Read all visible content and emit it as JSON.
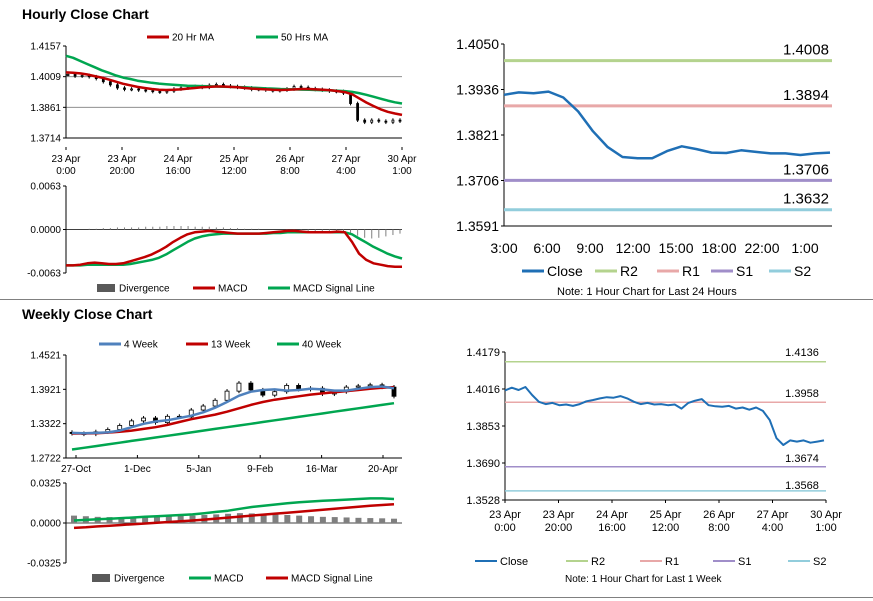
{
  "sections": {
    "hourly_title": "Hourly Close Chart",
    "weekly_title": "Weekly Close Chart"
  },
  "notes": {
    "hourly": "Note: 1 Hour Chart for Last 24 Hours",
    "weekly": "Note: 1 Hour Chart for Last 1 Week"
  },
  "colors": {
    "close": "#1F6FB5",
    "r2": "#B4D38E",
    "r1": "#E8A8A8",
    "s1": "#A08EC9",
    "s2": "#92CDDC",
    "red": "#C00000",
    "green": "#00A650",
    "blue": "#4F81BD",
    "bar": "#595959"
  },
  "chart_data": [
    {
      "id": "hourly_price",
      "type": "candlestick",
      "legend": [
        "20 Hr MA",
        "50 Hrs MA"
      ],
      "yticks": [
        "1.4157",
        "1.4009",
        "1.3861",
        "1.3714"
      ],
      "ylim": [
        1.3714,
        1.4157
      ],
      "xticks": [
        "23 Apr\n0:00",
        "23 Apr\n20:00",
        "24 Apr\n16:00",
        "25 Apr\n12:00",
        "26 Apr\n8:00",
        "27 Apr\n4:00",
        "30 Apr\n1:00"
      ],
      "close": [
        1.402,
        1.4012,
        1.4015,
        1.4009,
        1.4,
        1.3985,
        1.397,
        1.3955,
        1.3948,
        1.395,
        1.3945,
        1.3942,
        1.3938,
        1.3935,
        1.394,
        1.395,
        1.3955,
        1.396,
        1.3962,
        1.3958,
        1.3968,
        1.3972,
        1.3965,
        1.3962,
        1.3958,
        1.3955,
        1.3948,
        1.395,
        1.3945,
        1.3942,
        1.3945,
        1.395,
        1.3962,
        1.3958,
        1.3952,
        1.3948,
        1.3945,
        1.394,
        1.3938,
        1.393,
        1.388,
        1.38,
        1.379,
        1.38,
        1.3795,
        1.379,
        1.38,
        1.3795
      ],
      "ma20": [
        1.403,
        1.4028,
        1.4025,
        1.402,
        1.4012,
        1.4005,
        1.3995,
        1.3985,
        1.3975,
        1.3968,
        1.396,
        1.3955,
        1.395,
        1.3946,
        1.3945,
        1.3946,
        1.3948,
        1.3952,
        1.3955,
        1.3958,
        1.396,
        1.3962,
        1.3962,
        1.396,
        1.3958,
        1.3955,
        1.3952,
        1.395,
        1.3948,
        1.3946,
        1.3945,
        1.3946,
        1.3948,
        1.395,
        1.395,
        1.3948,
        1.3946,
        1.3944,
        1.394,
        1.3935,
        1.3925,
        1.3905,
        1.3885,
        1.3868,
        1.3852,
        1.384,
        1.3832,
        1.3825
      ],
      "ma50": [
        1.411,
        1.41,
        1.4085,
        1.407,
        1.4055,
        1.404,
        1.4028,
        1.4015,
        1.4005,
        1.3998,
        1.399,
        1.3985,
        1.398,
        1.3976,
        1.3973,
        1.397,
        1.3968,
        1.3966,
        1.3965,
        1.3964,
        1.3963,
        1.3962,
        1.3961,
        1.396,
        1.3959,
        1.3958,
        1.3956,
        1.3955,
        1.3953,
        1.3952,
        1.395,
        1.3949,
        1.3948,
        1.3947,
        1.3946,
        1.3945,
        1.3944,
        1.3943,
        1.3942,
        1.394,
        1.3936,
        1.393,
        1.3922,
        1.3913,
        1.3903,
        1.3894,
        1.3886,
        1.388
      ]
    },
    {
      "id": "hourly_macd",
      "type": "line+bar",
      "legend": [
        "Divergence",
        "MACD",
        "MACD Signal Line"
      ],
      "yticks": [
        "0.0063",
        "0.0000",
        "-0.0063"
      ],
      "ylim": [
        -0.0063,
        0.0063
      ],
      "divergence": [
        0,
        0,
        0,
        0.0001,
        0.0001,
        0.0002,
        0.0002,
        0.0003,
        0.0003,
        0.0003,
        0.0003,
        0.0004,
        0.0004,
        0.0004,
        0.0005,
        0.0005,
        0.0005,
        0.0005,
        0.0004,
        0.0004,
        0.0004,
        0.0003,
        0.0003,
        0.0002,
        0.0002,
        0.0001,
        0.0001,
        0.0001,
        0,
        0,
        0,
        -0.0001,
        -0.0001,
        -0.0001,
        -0.0002,
        -0.0002,
        -0.0002,
        -0.0002,
        -0.0002,
        -0.0003,
        -0.0005,
        -0.0009,
        -0.0012,
        -0.0013,
        -0.0012,
        -0.001,
        -0.0008,
        -0.0006
      ],
      "macd": [
        -0.0052,
        -0.0052,
        -0.0051,
        -0.0049,
        -0.0048,
        -0.0049,
        -0.005,
        -0.005,
        -0.0049,
        -0.0046,
        -0.0043,
        -0.004,
        -0.0036,
        -0.0031,
        -0.0025,
        -0.0018,
        -0.0012,
        -0.0007,
        -0.0004,
        -0.0003,
        -0.0002,
        -0.0003,
        -0.0004,
        -0.0005,
        -0.0006,
        -0.0006,
        -0.0006,
        -0.0006,
        -0.0005,
        -0.0004,
        -0.0003,
        -0.0002,
        -0.0002,
        -0.0003,
        -0.0004,
        -0.0004,
        -0.0004,
        -0.0004,
        -0.0003,
        -0.0004,
        -0.0018,
        -0.0035,
        -0.0044,
        -0.0049,
        -0.0051,
        -0.0053,
        -0.0054,
        -0.0054
      ],
      "signal": [
        -0.0052,
        -0.0052,
        -0.0052,
        -0.0051,
        -0.0051,
        -0.0051,
        -0.0051,
        -0.0051,
        -0.0051,
        -0.005,
        -0.0048,
        -0.0046,
        -0.0044,
        -0.0041,
        -0.0036,
        -0.003,
        -0.0024,
        -0.0018,
        -0.0013,
        -0.001,
        -0.0008,
        -0.0007,
        -0.0006,
        -0.0006,
        -0.0006,
        -0.0006,
        -0.0006,
        -0.0006,
        -0.0006,
        -0.0005,
        -0.0005,
        -0.0004,
        -0.0004,
        -0.0004,
        -0.0004,
        -0.0004,
        -0.0004,
        -0.0004,
        -0.0004,
        -0.0004,
        -0.0007,
        -0.0013,
        -0.0019,
        -0.0025,
        -0.003,
        -0.0035,
        -0.0039,
        -0.0042
      ]
    },
    {
      "id": "hourly_24h",
      "type": "line",
      "legend": [
        "Close",
        "R2",
        "R1",
        "S1",
        "S2"
      ],
      "yticks": [
        "1.4050",
        "1.3936",
        "1.3821",
        "1.3706",
        "1.3591"
      ],
      "ylim": [
        1.3591,
        1.405
      ],
      "xticks": [
        "3:00",
        "6:00",
        "9:00",
        "12:00",
        "15:00",
        "18:00",
        "22:00",
        "1:00"
      ],
      "levels": {
        "r2": "1.4008",
        "r1": "1.3894",
        "s1": "1.3706",
        "s2": "1.3632"
      },
      "close": [
        1.3922,
        1.3928,
        1.3926,
        1.393,
        1.3915,
        1.388,
        1.383,
        1.379,
        1.3765,
        1.3762,
        1.3762,
        1.378,
        1.3792,
        1.3785,
        1.3776,
        1.3775,
        1.3782,
        1.3778,
        1.3774,
        1.3774,
        1.377,
        1.3774,
        1.3776
      ]
    },
    {
      "id": "weekly_price",
      "type": "candlestick",
      "legend": [
        "4 Week",
        "13 Week",
        "40 Week"
      ],
      "yticks": [
        "1.4521",
        "1.3921",
        "1.3322",
        "1.2722"
      ],
      "ylim": [
        1.2722,
        1.4521
      ],
      "xticks": [
        "27-Oct",
        "1-Dec",
        "5-Jan",
        "9-Feb",
        "16-Mar",
        "20-Apr"
      ],
      "open": [
        1.317,
        1.315,
        1.314,
        1.318,
        1.322,
        1.329,
        1.337,
        1.342,
        1.334,
        1.345,
        1.344,
        1.356,
        1.363,
        1.373,
        1.389,
        1.403,
        1.391,
        1.382,
        1.388,
        1.399,
        1.392,
        1.394,
        1.384,
        1.388,
        1.396,
        1.398,
        1.4,
        1.396
      ],
      "close": [
        1.315,
        1.314,
        1.318,
        1.322,
        1.329,
        1.337,
        1.342,
        1.334,
        1.345,
        1.344,
        1.356,
        1.363,
        1.373,
        1.389,
        1.403,
        1.391,
        1.382,
        1.388,
        1.399,
        1.392,
        1.394,
        1.384,
        1.388,
        1.396,
        1.398,
        1.4,
        1.396,
        1.38
      ],
      "ma4": [
        1.316,
        1.3155,
        1.316,
        1.317,
        1.32,
        1.326,
        1.332,
        1.336,
        1.338,
        1.342,
        1.346,
        1.352,
        1.36,
        1.37,
        1.381,
        1.388,
        1.391,
        1.392,
        1.39,
        1.391,
        1.393,
        1.392,
        1.39,
        1.39,
        1.393,
        1.396,
        1.397,
        1.394
      ],
      "ma13": [
        1.315,
        1.315,
        1.3155,
        1.3165,
        1.318,
        1.32,
        1.323,
        1.326,
        1.33,
        1.335,
        1.34,
        1.344,
        1.348,
        1.353,
        1.359,
        1.365,
        1.37,
        1.374,
        1.377,
        1.38,
        1.383,
        1.385,
        1.387,
        1.389,
        1.391,
        1.393,
        1.395,
        1.396
      ],
      "ma40": [
        1.287,
        1.29,
        1.293,
        1.296,
        1.299,
        1.302,
        1.305,
        1.308,
        1.311,
        1.314,
        1.317,
        1.32,
        1.323,
        1.326,
        1.329,
        1.332,
        1.335,
        1.338,
        1.341,
        1.344,
        1.347,
        1.35,
        1.353,
        1.356,
        1.359,
        1.362,
        1.365,
        1.368
      ]
    },
    {
      "id": "weekly_macd",
      "type": "line+bar",
      "legend": [
        "Divergence",
        "MACD",
        "MACD Signal Line"
      ],
      "yticks": [
        "0.0325",
        "0.0000",
        "-0.0325"
      ],
      "ylim": [
        -0.0325,
        0.0325
      ],
      "divergence": [
        0.006,
        0.0055,
        0.005,
        0.0048,
        0.0045,
        0.0045,
        0.0048,
        0.0052,
        0.0055,
        0.0058,
        0.006,
        0.0065,
        0.007,
        0.0075,
        0.008,
        0.0078,
        0.0075,
        0.007,
        0.0065,
        0.006,
        0.0055,
        0.005,
        0.0048,
        0.0045,
        0.0042,
        0.004,
        0.0038,
        0.0035
      ],
      "macd": [
        0.002,
        0.0025,
        0.003,
        0.0035,
        0.004,
        0.0045,
        0.005,
        0.0055,
        0.006,
        0.0065,
        0.007,
        0.008,
        0.009,
        0.01,
        0.0115,
        0.013,
        0.014,
        0.015,
        0.016,
        0.0168,
        0.0175,
        0.018,
        0.0185,
        0.019,
        0.0195,
        0.02,
        0.02,
        0.0195
      ],
      "signal": [
        -0.004,
        -0.0035,
        -0.0028,
        -0.0022,
        -0.0016,
        -0.001,
        -0.0004,
        0.0002,
        0.0008,
        0.0014,
        0.002,
        0.0028,
        0.0036,
        0.0044,
        0.0052,
        0.006,
        0.0068,
        0.0076,
        0.0084,
        0.0092,
        0.01,
        0.0108,
        0.0116,
        0.0124,
        0.0132,
        0.014,
        0.0146,
        0.0152
      ]
    },
    {
      "id": "weekly_1w",
      "type": "line",
      "legend": [
        "Close",
        "R2",
        "R1",
        "S1",
        "S2"
      ],
      "yticks": [
        "1.4179",
        "1.4016",
        "1.3853",
        "1.3690",
        "1.3528"
      ],
      "ylim": [
        1.3528,
        1.4179
      ],
      "xticks": [
        "23 Apr\n0:00",
        "23 Apr\n20:00",
        "24 Apr\n16:00",
        "25 Apr\n12:00",
        "26 Apr\n8:00",
        "27 Apr\n4:00",
        "30 Apr\n1:00"
      ],
      "levels": {
        "r2": "1.4136",
        "r1": "1.3958",
        "s1": "1.3674",
        "s2": "1.3568"
      },
      "close": [
        1.401,
        1.4022,
        1.4012,
        1.4025,
        1.399,
        1.396,
        1.395,
        1.3955,
        1.3945,
        1.3948,
        1.3942,
        1.395,
        1.3962,
        1.3968,
        1.3975,
        1.398,
        1.3978,
        1.3985,
        1.3975,
        1.396,
        1.395,
        1.3955,
        1.3948,
        1.395,
        1.3945,
        1.3948,
        1.393,
        1.3955,
        1.3965,
        1.3972,
        1.3945,
        1.394,
        1.3938,
        1.3942,
        1.393,
        1.3935,
        1.3925,
        1.3935,
        1.392,
        1.388,
        1.38,
        1.377,
        1.379,
        1.3785,
        1.379,
        1.378,
        1.3785,
        1.379
      ]
    }
  ]
}
